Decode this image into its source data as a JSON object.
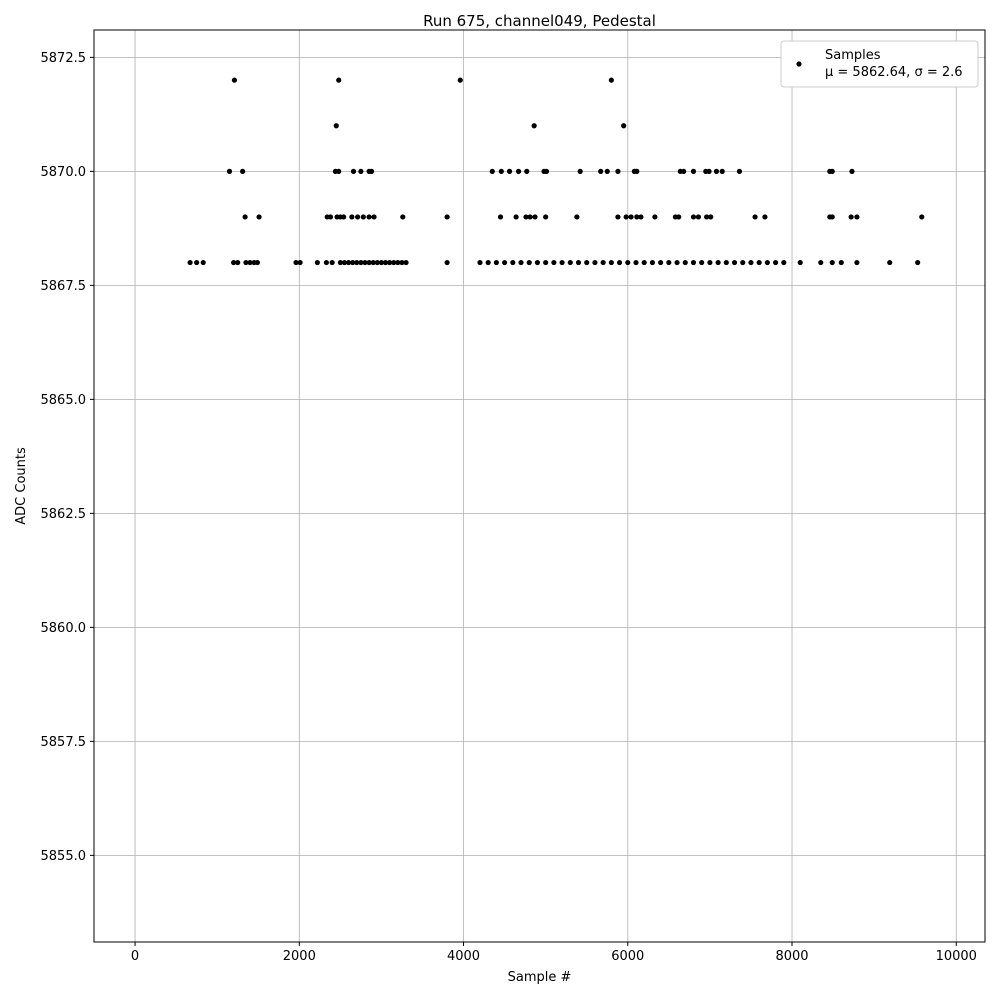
{
  "chart_data": {
    "type": "scatter",
    "title": "Run 675, channel049, Pedestal",
    "xlabel": "Sample #",
    "ylabel": "ADC Counts",
    "xlim": [
      -500,
      10350
    ],
    "ylim": [
      5853.1,
      5873.1
    ],
    "x_ticks": [
      0,
      2000,
      4000,
      6000,
      8000,
      10000
    ],
    "y_ticks": [
      5855.0,
      5857.5,
      5860.0,
      5862.5,
      5865.0,
      5867.5,
      5870.0,
      5872.5
    ],
    "grid": true,
    "legend_position": "top-right",
    "marker_color": "#000000",
    "legend": {
      "series_name": "Samples",
      "stats_label": "μ = 5862.64, σ = 2.6"
    },
    "series": [
      {
        "name": "Samples",
        "points": [
          [
            1210,
            5872
          ],
          [
            2480,
            5872
          ],
          [
            3960,
            5872
          ],
          [
            5800,
            5872
          ],
          [
            2450,
            5871
          ],
          [
            4860,
            5871
          ],
          [
            5950,
            5871
          ],
          [
            1150,
            5870
          ],
          [
            1310,
            5870
          ],
          [
            2440,
            5870
          ],
          [
            2480,
            5870
          ],
          [
            2660,
            5870
          ],
          [
            2750,
            5870
          ],
          [
            2850,
            5870
          ],
          [
            2880,
            5870
          ],
          [
            4350,
            5870
          ],
          [
            4460,
            5870
          ],
          [
            4560,
            5870
          ],
          [
            4670,
            5870
          ],
          [
            4770,
            5870
          ],
          [
            4980,
            5870
          ],
          [
            5010,
            5870
          ],
          [
            5420,
            5870
          ],
          [
            5670,
            5870
          ],
          [
            5750,
            5870
          ],
          [
            5880,
            5870
          ],
          [
            6080,
            5870
          ],
          [
            6110,
            5870
          ],
          [
            6640,
            5870
          ],
          [
            6680,
            5870
          ],
          [
            6800,
            5870
          ],
          [
            6950,
            5870
          ],
          [
            6990,
            5870
          ],
          [
            7080,
            5870
          ],
          [
            7150,
            5870
          ],
          [
            7360,
            5870
          ],
          [
            8460,
            5870
          ],
          [
            8490,
            5870
          ],
          [
            8730,
            5870
          ],
          [
            1340,
            5869
          ],
          [
            1510,
            5869
          ],
          [
            2340,
            5869
          ],
          [
            2380,
            5869
          ],
          [
            2460,
            5869
          ],
          [
            2500,
            5869
          ],
          [
            2540,
            5869
          ],
          [
            2640,
            5869
          ],
          [
            2710,
            5869
          ],
          [
            2780,
            5869
          ],
          [
            2850,
            5869
          ],
          [
            2910,
            5869
          ],
          [
            3260,
            5869
          ],
          [
            3800,
            5869
          ],
          [
            4450,
            5869
          ],
          [
            4640,
            5869
          ],
          [
            4760,
            5869
          ],
          [
            4810,
            5869
          ],
          [
            4870,
            5869
          ],
          [
            5000,
            5869
          ],
          [
            5380,
            5869
          ],
          [
            5880,
            5869
          ],
          [
            5980,
            5869
          ],
          [
            6040,
            5869
          ],
          [
            6110,
            5869
          ],
          [
            6160,
            5869
          ],
          [
            6330,
            5869
          ],
          [
            6580,
            5869
          ],
          [
            6620,
            5869
          ],
          [
            6800,
            5869
          ],
          [
            6860,
            5869
          ],
          [
            6960,
            5869
          ],
          [
            7010,
            5869
          ],
          [
            7550,
            5869
          ],
          [
            7670,
            5869
          ],
          [
            8460,
            5869
          ],
          [
            8490,
            5869
          ],
          [
            8720,
            5869
          ],
          [
            8790,
            5869
          ],
          [
            9580,
            5869
          ],
          [
            670,
            5868
          ],
          [
            750,
            5868
          ],
          [
            830,
            5868
          ],
          [
            1200,
            5868
          ],
          [
            1250,
            5868
          ],
          [
            1350,
            5868
          ],
          [
            1400,
            5868
          ],
          [
            1450,
            5868
          ],
          [
            1490,
            5868
          ],
          [
            1960,
            5868
          ],
          [
            2010,
            5868
          ],
          [
            2220,
            5868
          ],
          [
            2330,
            5868
          ],
          [
            2400,
            5868
          ],
          [
            2500,
            5868
          ],
          [
            2550,
            5868
          ],
          [
            2600,
            5868
          ],
          [
            2650,
            5868
          ],
          [
            2700,
            5868
          ],
          [
            2750,
            5868
          ],
          [
            2800,
            5868
          ],
          [
            2850,
            5868
          ],
          [
            2900,
            5868
          ],
          [
            2950,
            5868
          ],
          [
            3000,
            5868
          ],
          [
            3050,
            5868
          ],
          [
            3100,
            5868
          ],
          [
            3150,
            5868
          ],
          [
            3200,
            5868
          ],
          [
            3250,
            5868
          ],
          [
            3300,
            5868
          ],
          [
            3800,
            5868
          ],
          [
            4200,
            5868
          ],
          [
            4300,
            5868
          ],
          [
            4400,
            5868
          ],
          [
            4500,
            5868
          ],
          [
            4600,
            5868
          ],
          [
            4700,
            5868
          ],
          [
            4800,
            5868
          ],
          [
            4900,
            5868
          ],
          [
            5000,
            5868
          ],
          [
            5100,
            5868
          ],
          [
            5200,
            5868
          ],
          [
            5300,
            5868
          ],
          [
            5400,
            5868
          ],
          [
            5500,
            5868
          ],
          [
            5600,
            5868
          ],
          [
            5700,
            5868
          ],
          [
            5800,
            5868
          ],
          [
            5900,
            5868
          ],
          [
            6000,
            5868
          ],
          [
            6100,
            5868
          ],
          [
            6200,
            5868
          ],
          [
            6300,
            5868
          ],
          [
            6400,
            5868
          ],
          [
            6500,
            5868
          ],
          [
            6600,
            5868
          ],
          [
            6700,
            5868
          ],
          [
            6800,
            5868
          ],
          [
            6900,
            5868
          ],
          [
            7000,
            5868
          ],
          [
            7100,
            5868
          ],
          [
            7200,
            5868
          ],
          [
            7300,
            5868
          ],
          [
            7400,
            5868
          ],
          [
            7500,
            5868
          ],
          [
            7600,
            5868
          ],
          [
            7700,
            5868
          ],
          [
            7800,
            5868
          ],
          [
            7900,
            5868
          ],
          [
            8100,
            5868
          ],
          [
            8350,
            5868
          ],
          [
            8490,
            5868
          ],
          [
            8600,
            5868
          ],
          [
            8790,
            5868
          ],
          [
            9190,
            5868
          ],
          [
            9530,
            5868
          ]
        ]
      }
    ]
  }
}
